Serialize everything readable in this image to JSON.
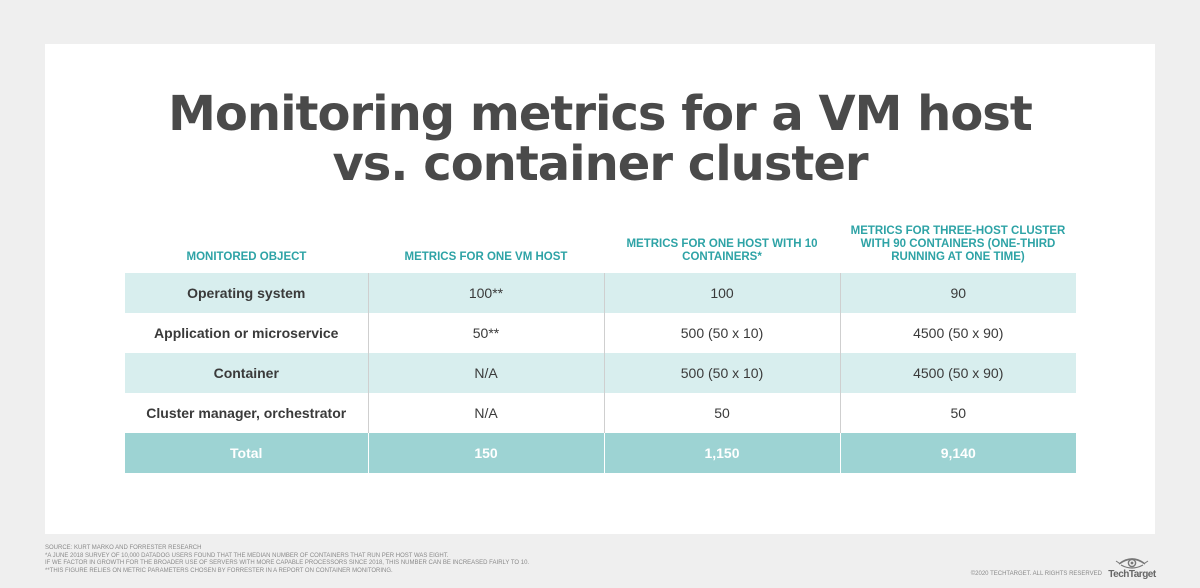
{
  "title": {
    "line1": "Monitoring metrics for a VM host",
    "line2": "vs. container cluster"
  },
  "table": {
    "headers": [
      "Monitored object",
      "Metrics for one VM host",
      "Metrics for one host with 10 containers*",
      "Metrics for three-host cluster with 90 containers (one-third running at one time)"
    ],
    "rows": [
      [
        "Operating system",
        "100**",
        "100",
        "90"
      ],
      [
        "Application or microservice",
        "50**",
        "500 (50 x 10)",
        "4500 (50 x 90)"
      ],
      [
        "Container",
        "N/A",
        "500 (50 x 10)",
        "4500 (50 x 90)"
      ],
      [
        "Cluster manager, orchestrator",
        "N/A",
        "50",
        "50"
      ]
    ],
    "total": [
      "Total",
      "150",
      "1,150",
      "9,140"
    ]
  },
  "footnotes": {
    "source": "Source: Kurt Marko and Forrester Research",
    "note1": "*A June 2018 survey of 10,000 Datadog users found that the median number of containers that run per host was eight.",
    "note2": "If we factor in growth for the broader use of servers with more capable processors since 2018, this number can be increased fairly to 10.",
    "note3": "**This figure relies on metric parameters chosen by Forrester in a report on container monitoring."
  },
  "copyright": "©2020 TechTarget. All rights reserved",
  "logo": {
    "text": "TechTarget",
    "icon": "eye-icon"
  },
  "colors": {
    "header_teal": "#2ea3a6",
    "row_alt": "#d8eeee",
    "total_row": "#9dd3d3",
    "title": "#4a4a4a"
  }
}
